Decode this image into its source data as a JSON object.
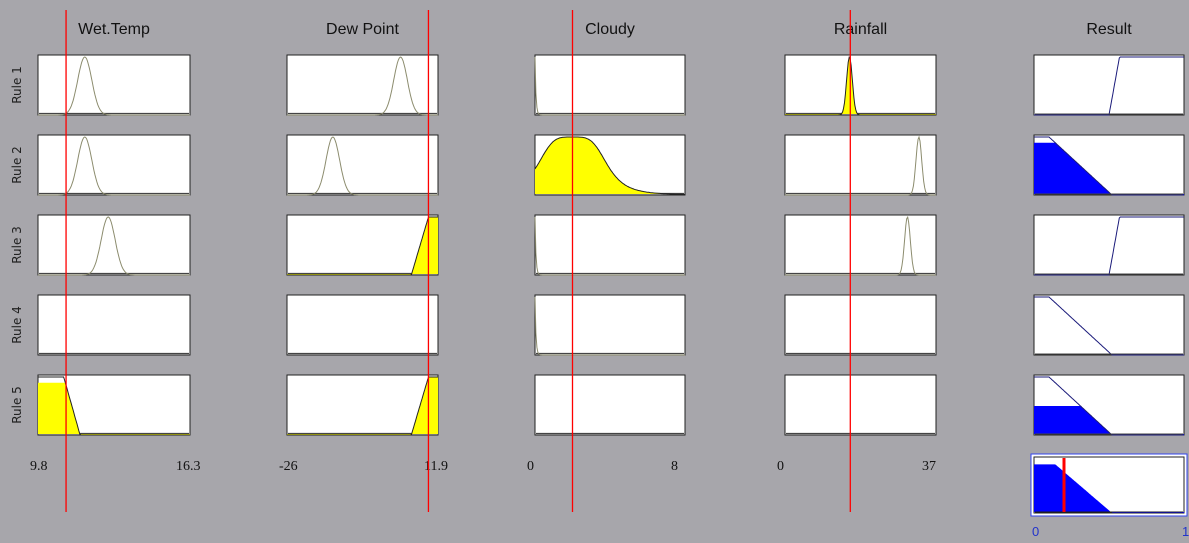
{
  "chart_data": {
    "type": "fuzzy-rule-viewer",
    "colors": {
      "background": "#a7a6ab",
      "panel": "#ffffff",
      "fill_input": "#ffff00",
      "fill_output": "#0000ff",
      "marker": "#ff0000",
      "curve": "#8c8c6e",
      "output_line": "#1a1a7a",
      "axis_label": "#2233cc"
    },
    "rules": [
      "Rule 1",
      "Rule 2",
      "Rule 3",
      "Rule 4",
      "Rule 5"
    ],
    "inputs": [
      {
        "name": "Wet.Temp",
        "range_labels": [
          "9.8",
          "16.3"
        ],
        "range": [
          9.8,
          16.3
        ],
        "marker": 11.0,
        "mf": [
          {
            "rule": 1,
            "type": "gauss",
            "params": [
              11.8,
              0.3
            ],
            "fill": 0
          },
          {
            "rule": 2,
            "type": "gauss",
            "params": [
              11.8,
              0.3
            ],
            "fill": 0
          },
          {
            "rule": 3,
            "type": "gauss",
            "params": [
              12.8,
              0.3
            ],
            "fill": 0
          },
          {
            "rule": 4,
            "type": "none"
          },
          {
            "rule": 5,
            "type": "trap",
            "params": [
              9.8,
              9.8,
              10.9,
              11.6
            ],
            "fill": 0.9
          }
        ]
      },
      {
        "name": "Dew Point",
        "range_labels": [
          "-26",
          "11.9"
        ],
        "range": [
          -26,
          11.9
        ],
        "marker": 9.5,
        "mf": [
          {
            "rule": 1,
            "type": "gauss",
            "params": [
              2.5,
              1.7
            ],
            "fill": 0
          },
          {
            "rule": 2,
            "type": "gauss",
            "params": [
              -14.5,
              1.7
            ],
            "fill": 0
          },
          {
            "rule": 3,
            "type": "trap",
            "params": [
              5.2,
              9.5,
              11.9,
              11.9
            ],
            "fill": 1
          },
          {
            "rule": 4,
            "type": "none"
          },
          {
            "rule": 5,
            "type": "trap",
            "params": [
              5.2,
              9.5,
              11.9,
              11.9
            ],
            "fill": 1
          }
        ]
      },
      {
        "name": "Cloudy",
        "range_labels": [
          "0",
          "8"
        ],
        "range": [
          0,
          8
        ],
        "marker": 2.0,
        "mf": [
          {
            "rule": 1,
            "type": "decay",
            "params": [
              0,
              0.05
            ],
            "fill": 0
          },
          {
            "rule": 2,
            "type": "gbell",
            "params": [
              2.0,
              1.9
            ],
            "fill": 1
          },
          {
            "rule": 3,
            "type": "decay",
            "params": [
              0,
              0.05
            ],
            "fill": 0
          },
          {
            "rule": 4,
            "type": "decay",
            "params": [
              0,
              0.05
            ],
            "fill": 0
          },
          {
            "rule": 5,
            "type": "none"
          }
        ]
      },
      {
        "name": "Rainfall",
        "range_labels": [
          "0",
          "37"
        ],
        "range": [
          0,
          37
        ],
        "marker": 16.0,
        "mf": [
          {
            "rule": 1,
            "type": "gauss",
            "params": [
              15.8,
              0.7
            ],
            "fill": 1
          },
          {
            "rule": 2,
            "type": "gauss",
            "params": [
              32.8,
              0.7
            ],
            "fill": 0
          },
          {
            "rule": 3,
            "type": "gauss",
            "params": [
              30.0,
              0.7
            ],
            "fill": 0
          },
          {
            "rule": 4,
            "type": "none"
          },
          {
            "rule": 5,
            "type": "none"
          }
        ]
      }
    ],
    "output": {
      "name": "Result",
      "range_labels": [
        "0",
        "1"
      ],
      "range": [
        0,
        1
      ],
      "marker": 0.2,
      "mf": [
        {
          "rule": 1,
          "type": "rise",
          "params": [
            0.5,
            0.57
          ],
          "level": 0
        },
        {
          "rule": 2,
          "type": "fall",
          "params": [
            0.1,
            0.52
          ],
          "level": 0.9
        },
        {
          "rule": 3,
          "type": "rise",
          "params": [
            0.5,
            0.57
          ],
          "level": 0
        },
        {
          "rule": 4,
          "type": "fall",
          "params": [
            0.1,
            0.52
          ],
          "level": 0
        },
        {
          "rule": 5,
          "type": "fall",
          "params": [
            0.1,
            0.52
          ],
          "level": 0.5
        }
      ],
      "aggregate_level": 0.9
    }
  }
}
